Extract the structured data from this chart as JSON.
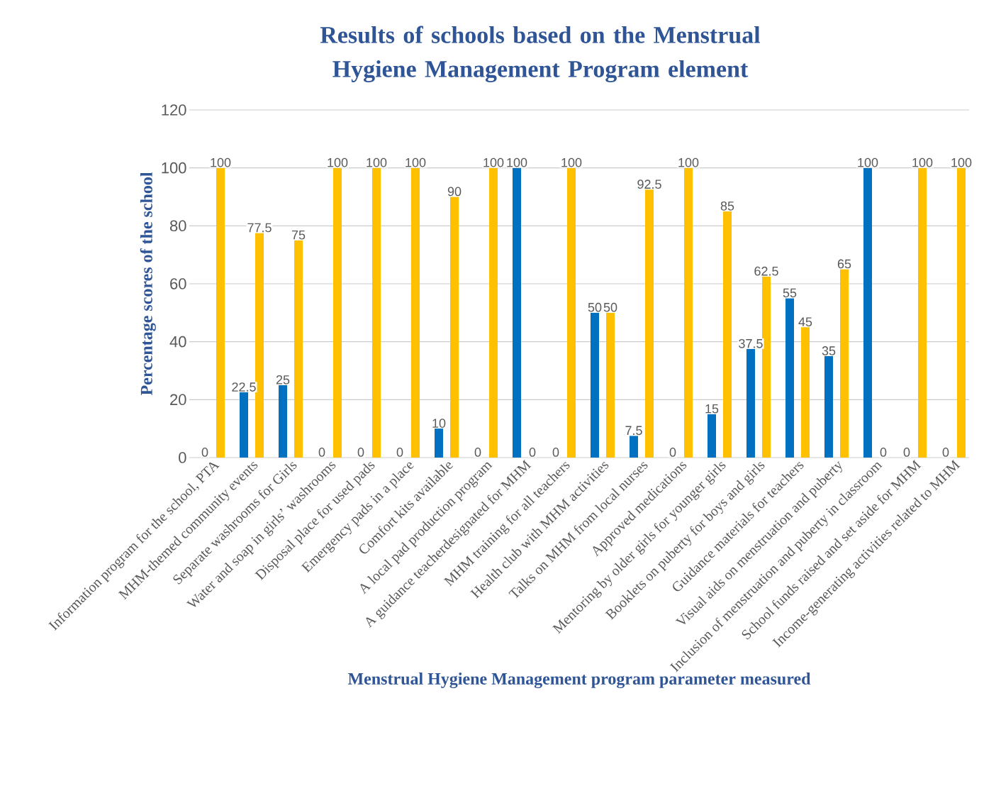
{
  "chart_data": {
    "type": "bar",
    "title": "Results of schools based on the Menstrual Hygiene Management Program element",
    "xlabel": "Menstrual Hygiene Management program parameter measured",
    "ylabel": "Percentage scores of the school",
    "categories": [
      "Information program for the school, PTA",
      "MHM-themed community events",
      "Separate washrooms for Girls",
      "Water and soap in girls’ washrooms",
      "Disposal place for used pads",
      "Emergency pads in a place",
      "Comfort kits available",
      "A local pad production program",
      "A guidance teacherdesignated for MHM",
      "MHM training for all teachers",
      "Health club with MHM activities",
      "Talks on MHM from local nurses",
      "Approved medications",
      "Mentoring by older girls for younger girls",
      "Booklets on puberty for boys and girls",
      "Guidance materials for teachers",
      "Visual aids on menstruation and puberty",
      "Inclusion of menstruation and puberty in classroom",
      "School funds raised and set aside for MHM",
      "Income-generating activities related to MHM"
    ],
    "series": [
      {
        "color": "#0070c0",
        "values": [
          0,
          22.5,
          25,
          0,
          0,
          0,
          10,
          0,
          100,
          0,
          50,
          7.5,
          0,
          15,
          37.5,
          55,
          35,
          100,
          0,
          0
        ]
      },
      {
        "color": "#ffc000",
        "values": [
          100,
          77.5,
          75,
          100,
          100,
          100,
          90,
          100,
          0,
          100,
          50,
          92.5,
          100,
          85,
          62.5,
          45,
          65,
          0,
          100,
          100
        ]
      }
    ],
    "ylim": [
      0,
      120
    ],
    "yticks": [
      0,
      20,
      40,
      60,
      80,
      100,
      120
    ],
    "grid": "y",
    "data_labels": true
  }
}
